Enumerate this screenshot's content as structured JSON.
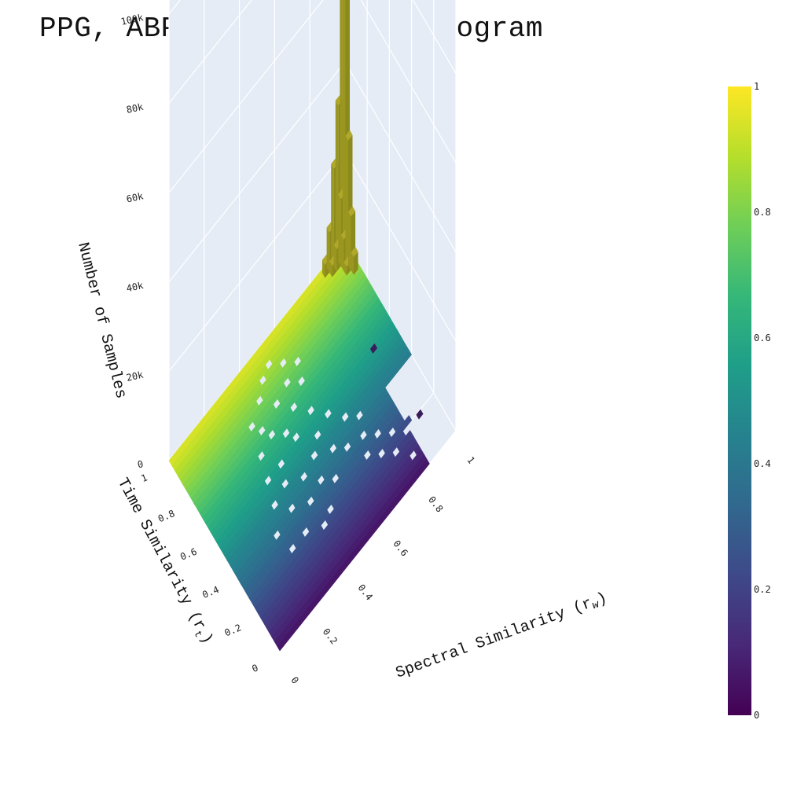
{
  "chart_data": {
    "type": "3d-bar-histogram",
    "title": "PPG, ABP Similarity Histogram",
    "x_axis": {
      "label_main": "Spectral Similarity (r",
      "label_sub": "w",
      "label_close": ")",
      "range": [
        0,
        1
      ],
      "ticks": [
        "0",
        "0.2",
        "0.4",
        "0.6",
        "0.8",
        "1"
      ]
    },
    "y_axis": {
      "label_main": "Time Similarity (r",
      "label_sub": "t",
      "label_close": ")",
      "range": [
        0,
        1
      ],
      "ticks": [
        "0",
        "0.2",
        "0.4",
        "0.6",
        "0.8",
        "1"
      ]
    },
    "z_axis": {
      "label": "Number of Samples",
      "range": [
        0,
        110000
      ],
      "ticks": [
        "0",
        "20k",
        "40k",
        "60k",
        "80k",
        "100k"
      ]
    },
    "colorbar": {
      "min": 0,
      "max": 1,
      "ticks": [
        "0",
        "0.2",
        "0.4",
        "0.6",
        "0.8",
        "1"
      ],
      "colorscale": [
        "#440154",
        "#482878",
        "#3e4989",
        "#31688e",
        "#26828e",
        "#1f9e89",
        "#35b779",
        "#6ece58",
        "#b5de2b",
        "#fde725"
      ]
    },
    "peak_columns": [
      {
        "x": 0.975,
        "y": 0.975,
        "z": 108000
      },
      {
        "x": 0.975,
        "y": 0.95,
        "z": 98000
      },
      {
        "x": 0.95,
        "y": 0.975,
        "z": 35000
      },
      {
        "x": 0.975,
        "y": 0.925,
        "z": 28000
      },
      {
        "x": 0.925,
        "y": 0.975,
        "z": 22000
      },
      {
        "x": 0.95,
        "y": 0.95,
        "z": 15000
      },
      {
        "x": 0.975,
        "y": 0.9,
        "z": 12000
      },
      {
        "x": 0.9,
        "y": 0.975,
        "z": 9000
      },
      {
        "x": 0.95,
        "y": 0.925,
        "z": 7000
      },
      {
        "x": 0.925,
        "y": 0.95,
        "z": 5000
      },
      {
        "x": 0.975,
        "y": 0.875,
        "z": 4000
      },
      {
        "x": 0.875,
        "y": 0.975,
        "z": 3000
      },
      {
        "x": 0.9,
        "y": 0.95,
        "z": 2500
      },
      {
        "x": 0.95,
        "y": 0.9,
        "z": 2000
      }
    ],
    "empty_cells": [
      [
        0.325,
        0.775
      ],
      [
        0.4,
        0.825
      ],
      [
        0.45,
        0.875
      ],
      [
        0.5,
        0.9
      ],
      [
        0.55,
        0.85
      ],
      [
        0.6,
        0.8
      ],
      [
        0.35,
        0.725
      ],
      [
        0.45,
        0.75
      ],
      [
        0.525,
        0.775
      ],
      [
        0.575,
        0.725
      ],
      [
        0.3,
        0.65
      ],
      [
        0.375,
        0.675
      ],
      [
        0.425,
        0.625
      ],
      [
        0.5,
        0.675
      ],
      [
        0.55,
        0.6
      ],
      [
        0.275,
        0.55
      ],
      [
        0.35,
        0.55
      ],
      [
        0.45,
        0.575
      ],
      [
        0.525,
        0.5
      ],
      [
        0.6,
        0.525
      ],
      [
        0.65,
        0.45
      ],
      [
        0.7,
        0.4
      ],
      [
        0.25,
        0.45
      ],
      [
        0.325,
        0.475
      ],
      [
        0.4,
        0.425
      ],
      [
        0.475,
        0.45
      ],
      [
        0.55,
        0.4
      ],
      [
        0.6,
        0.35
      ],
      [
        0.675,
        0.325
      ],
      [
        0.725,
        0.275
      ],
      [
        0.775,
        0.225
      ],
      [
        0.2,
        0.35
      ],
      [
        0.3,
        0.375
      ],
      [
        0.375,
        0.325
      ],
      [
        0.45,
        0.35
      ],
      [
        0.5,
        0.3
      ],
      [
        0.225,
        0.25
      ],
      [
        0.3,
        0.25
      ],
      [
        0.375,
        0.2
      ],
      [
        0.425,
        0.225
      ],
      [
        0.825,
        0.175
      ],
      [
        0.875,
        0.125
      ],
      [
        0.8,
        0.075
      ],
      [
        0.85,
        0.05
      ],
      [
        0.9,
        0.025
      ],
      [
        0.75,
        0.15
      ],
      [
        0.7,
        0.2
      ],
      [
        0.65,
        0.25
      ]
    ]
  }
}
